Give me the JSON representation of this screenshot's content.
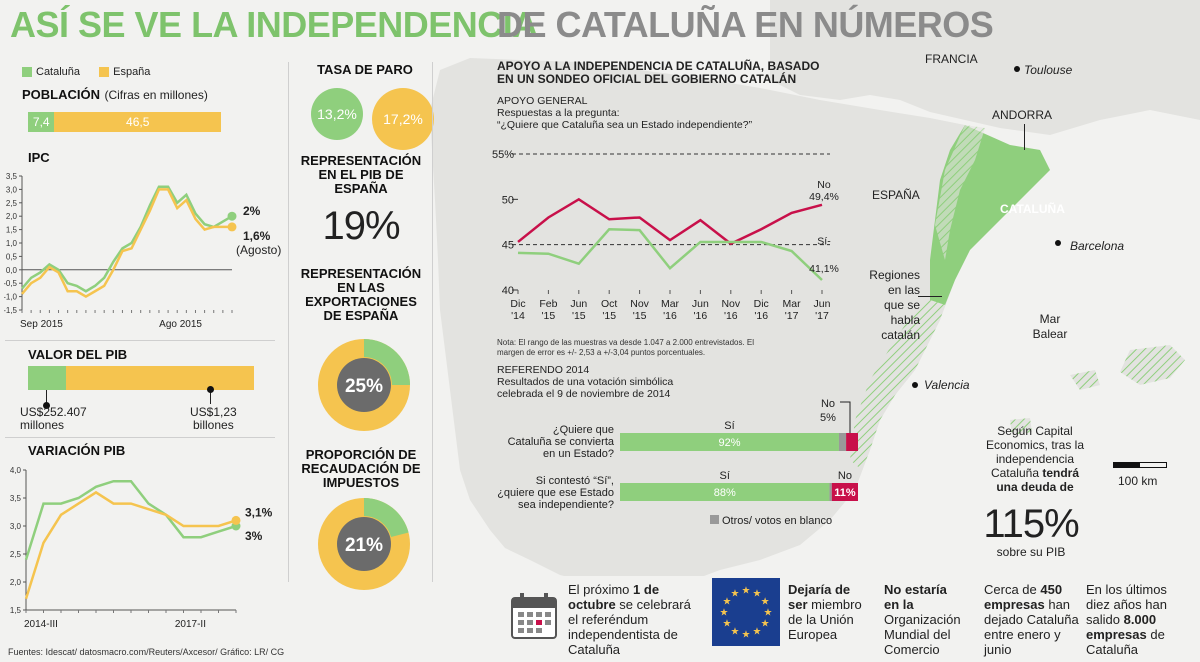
{
  "title": {
    "part1": "ASÍ SE VE LA INDEPENDENCIA",
    "part2": "DE CATALUÑA EN NÚMEROS"
  },
  "colors": {
    "cataluna": "#8fcf7d",
    "espana": "#f5c44f",
    "no": "#c8104a",
    "blank": "#999999"
  },
  "legend": {
    "cataluna": "Cataluña",
    "espana": "España"
  },
  "poblacion": {
    "title": "POBLACIÓN",
    "subtitle": "(Cifras en millones)",
    "cataluna": "7,4",
    "espana": "46,5"
  },
  "ipc": {
    "title": "IPC",
    "label_cat": "2%",
    "label_esp": "1,6%",
    "label_note": "(Agosto)"
  },
  "pib": {
    "title": "VALOR DEL PIB",
    "cat_label_1": "US$252.407",
    "cat_label_2": "millones",
    "esp_label_1": "US$1,23",
    "esp_label_2": "billones"
  },
  "variacion": {
    "title": "VARIACIÓN PIB",
    "label_esp": "3,1%",
    "label_cat": "3%"
  },
  "paro": {
    "title": "TASA DE PARO",
    "cataluna": "13,2%",
    "espana": "17,2%"
  },
  "rep_pib": {
    "title_1": "REPRESENTACIÓN",
    "title_2": "EN EL PIB DE",
    "title_3": "ESPAÑA",
    "value": "19%"
  },
  "rep_exp": {
    "title_1": "REPRESENTACIÓN",
    "title_2": "EN LAS",
    "title_3": "EXPORTACIONES",
    "title_4": "DE ESPAÑA",
    "value": "25%",
    "fraction": 0.25
  },
  "recaudacion": {
    "title_1": "PROPORCIÓN DE",
    "title_2": "RECAUDACIÓN DE",
    "title_3": "IMPUESTOS",
    "value": "21%",
    "fraction": 0.21
  },
  "apoyo": {
    "title_1": "APOYO A LA INDEPENDENCIA DE CATALUÑA, BASADO",
    "title_2": "EN UN SONDEO OFICIAL DEL GOBIERNO CATALÁN",
    "sub_1": "APOYO GENERAL",
    "sub_2": "Respuestas a la pregunta:",
    "sub_3": "“¿Quiere que Cataluña sea un Estado independiente?”",
    "no_label": "No",
    "no_value": "49,4%",
    "si_label": "Sí-",
    "si_value": "41,1%",
    "nota_1": "Nota: El rango de las muestras va desde 1.047 a 2.000 entrevistados. El",
    "nota_2": "margen de error es +/- 2,53 a +/-3,04 puntos porcentuales."
  },
  "referendo": {
    "title": "REFERENDO 2014",
    "sub_1": "Resultados de una votación simbólica",
    "sub_2": "celebrada el 9 de noviembre de 2014",
    "q1_1": "¿Quiere que",
    "q1_2": "Cataluña se convierta",
    "q1_3": "en un Estado?",
    "q2_1": "Si contestó “Sí”,",
    "q2_2": "¿quiere que ese Estado",
    "q2_3": "sea independiente?",
    "si": "Sí",
    "no": "No",
    "q1_si": "92%",
    "q1_no": "5%",
    "q1_si_value": 92,
    "q1_no_value": 5,
    "q1_blank_value": 3,
    "q2_si": "88%",
    "q2_no": "11%",
    "q2_si_value": 88,
    "q2_no_value": 11,
    "q2_blank_value": 1,
    "otros": "Otros/ votos en blanco"
  },
  "map": {
    "francia": "FRANCIA",
    "toulouse": "Toulouse",
    "andorra": "ANDORRA",
    "espana": "ESPAÑA",
    "cataluna": "CATALUÑA",
    "barcelona": "Barcelona",
    "valencia": "Valencia",
    "regiones_1": "Regiones",
    "regiones_2": "en las",
    "regiones_3": "que se",
    "regiones_4": "habla",
    "regiones_5": "catalán",
    "mar_1": "Mar",
    "mar_2": "Balear",
    "scale": "100 km"
  },
  "deuda": {
    "line1": "Según Capital",
    "line2": "Economics, tras la",
    "line3": "independencia",
    "line4": "Cataluña",
    "line4b": "tendrá",
    "line5": "una deuda de",
    "value": "115%",
    "sub": "sobre su PIB"
  },
  "footer": {
    "f1_a": "El próximo",
    "f1_b": "1 de",
    "f1_c": "octubre",
    "f1_d": "se celebrará",
    "f1_e": "el referéndum",
    "f1_f": "independentista de",
    "f1_g": "Cataluña",
    "f2_a": "Dejaría de",
    "f2_b": "ser",
    "f2_c": "miembro",
    "f2_d": "de la Unión",
    "f2_e": "Europea",
    "f3_a": "No estaría",
    "f3_b": "en la",
    "f3_c": "Organización",
    "f3_d": "Mundial del",
    "f3_e": "Comercio",
    "f4_a": "Cerca de",
    "f4_b": "450",
    "f4_c": "empresas",
    "f4_d": "han",
    "f4_e": "dejado Cataluña",
    "f4_f": "entre enero y",
    "f4_g": "junio",
    "f5_a": "En los últimos",
    "f5_b": "diez años han",
    "f5_c": "salido",
    "f5_d": "8.000",
    "f5_e": "empresas",
    "f5_f": "de",
    "f5_g": "Cataluña"
  },
  "fuentes": "Fuentes: Idescat/ datosmacro.com/Reuters/Axcesor/ Gráfico: LR/ CG",
  "chart_data": [
    {
      "type": "bar",
      "title": "POBLACIÓN (Cifras en millones)",
      "categories": [
        "Cataluña",
        "España"
      ],
      "values": [
        7.4,
        46.5
      ]
    },
    {
      "type": "line",
      "title": "IPC",
      "x": [
        "Sep 2015",
        "",
        "",
        "",
        "",
        "",
        "",
        "",
        "",
        "",
        "",
        "",
        "",
        "",
        "",
        "",
        "",
        "",
        "",
        "",
        "",
        "",
        "",
        "Ago 2015"
      ],
      "series": [
        {
          "name": "Cataluña",
          "values": [
            -0.7,
            -0.3,
            -0.1,
            0.2,
            0.0,
            -0.5,
            -0.6,
            -0.8,
            -0.6,
            -0.3,
            0.3,
            0.8,
            1.0,
            1.6,
            2.4,
            3.1,
            3.1,
            2.5,
            2.8,
            2.1,
            1.7,
            1.6,
            1.8,
            2.0
          ]
        },
        {
          "name": "España",
          "values": [
            -0.9,
            -0.5,
            -0.3,
            0.1,
            -0.1,
            -0.8,
            -0.8,
            -1.0,
            -0.8,
            -0.6,
            0.0,
            0.7,
            0.8,
            1.5,
            2.2,
            3.0,
            3.0,
            2.3,
            2.6,
            1.9,
            1.5,
            1.6,
            1.6,
            1.6
          ]
        }
      ],
      "ylim": [
        -1.5,
        3.5
      ],
      "yticks": [
        "3,5",
        "3,0",
        "2,5",
        "2,0",
        "1,5",
        "1,0",
        "0,5",
        "0,0",
        "-0,5",
        "-1,0",
        "-1,5"
      ]
    },
    {
      "type": "bar",
      "title": "VALOR DEL PIB",
      "categories": [
        "Cataluña",
        "España"
      ],
      "values": [
        252407,
        1230000
      ]
    },
    {
      "type": "line",
      "title": "VARIACIÓN PIB",
      "x": [
        "2014-III",
        "",
        "",
        "",
        "",
        "",
        "",
        "",
        "",
        "",
        "",
        "",
        "2017-II"
      ],
      "series": [
        {
          "name": "Cataluña",
          "values": [
            2.4,
            3.4,
            3.4,
            3.5,
            3.7,
            3.8,
            3.8,
            3.4,
            3.2,
            2.8,
            2.8,
            2.9,
            3.0
          ]
        },
        {
          "name": "España",
          "values": [
            1.7,
            2.7,
            3.2,
            3.4,
            3.6,
            3.4,
            3.4,
            3.3,
            3.2,
            3.0,
            3.0,
            3.0,
            3.1
          ]
        }
      ],
      "ylim": [
        1.5,
        4.0
      ],
      "yticks": [
        "4,0",
        "3,5",
        "3,0",
        "2,5",
        "2,0",
        "1,5"
      ]
    },
    {
      "type": "line",
      "title": "APOYO GENERAL",
      "x": [
        "Dic '14",
        "Feb '15",
        "Jun '15",
        "Oct '15",
        "Nov '15",
        "Mar '16",
        "Jun '16",
        "Nov '16",
        "Dic '16",
        "Mar '17",
        "Jun '17"
      ],
      "series": [
        {
          "name": "No",
          "values": [
            45.3,
            48.0,
            50.0,
            47.8,
            48.0,
            45.5,
            47.7,
            45.1,
            46.7,
            48.5,
            49.4
          ]
        },
        {
          "name": "Sí",
          "values": [
            44.1,
            44.0,
            42.9,
            46.7,
            46.6,
            42.4,
            45.3,
            45.3,
            45.3,
            44.3,
            41.1
          ]
        }
      ],
      "ylim": [
        40,
        55
      ],
      "yticks": [
        "55%",
        "50",
        "45",
        "40"
      ]
    },
    {
      "type": "bar",
      "title": "REFERENDO 2014",
      "categories": [
        "¿Quiere que Cataluña se convierta en un Estado?",
        "Si contestó “Sí”, ¿quiere que ese Estado sea independiente?"
      ],
      "series": [
        {
          "name": "Sí",
          "values": [
            92,
            88
          ]
        },
        {
          "name": "No",
          "values": [
            5,
            11
          ]
        },
        {
          "name": "Otros/ votos en blanco",
          "values": [
            3,
            1
          ]
        }
      ]
    }
  ]
}
